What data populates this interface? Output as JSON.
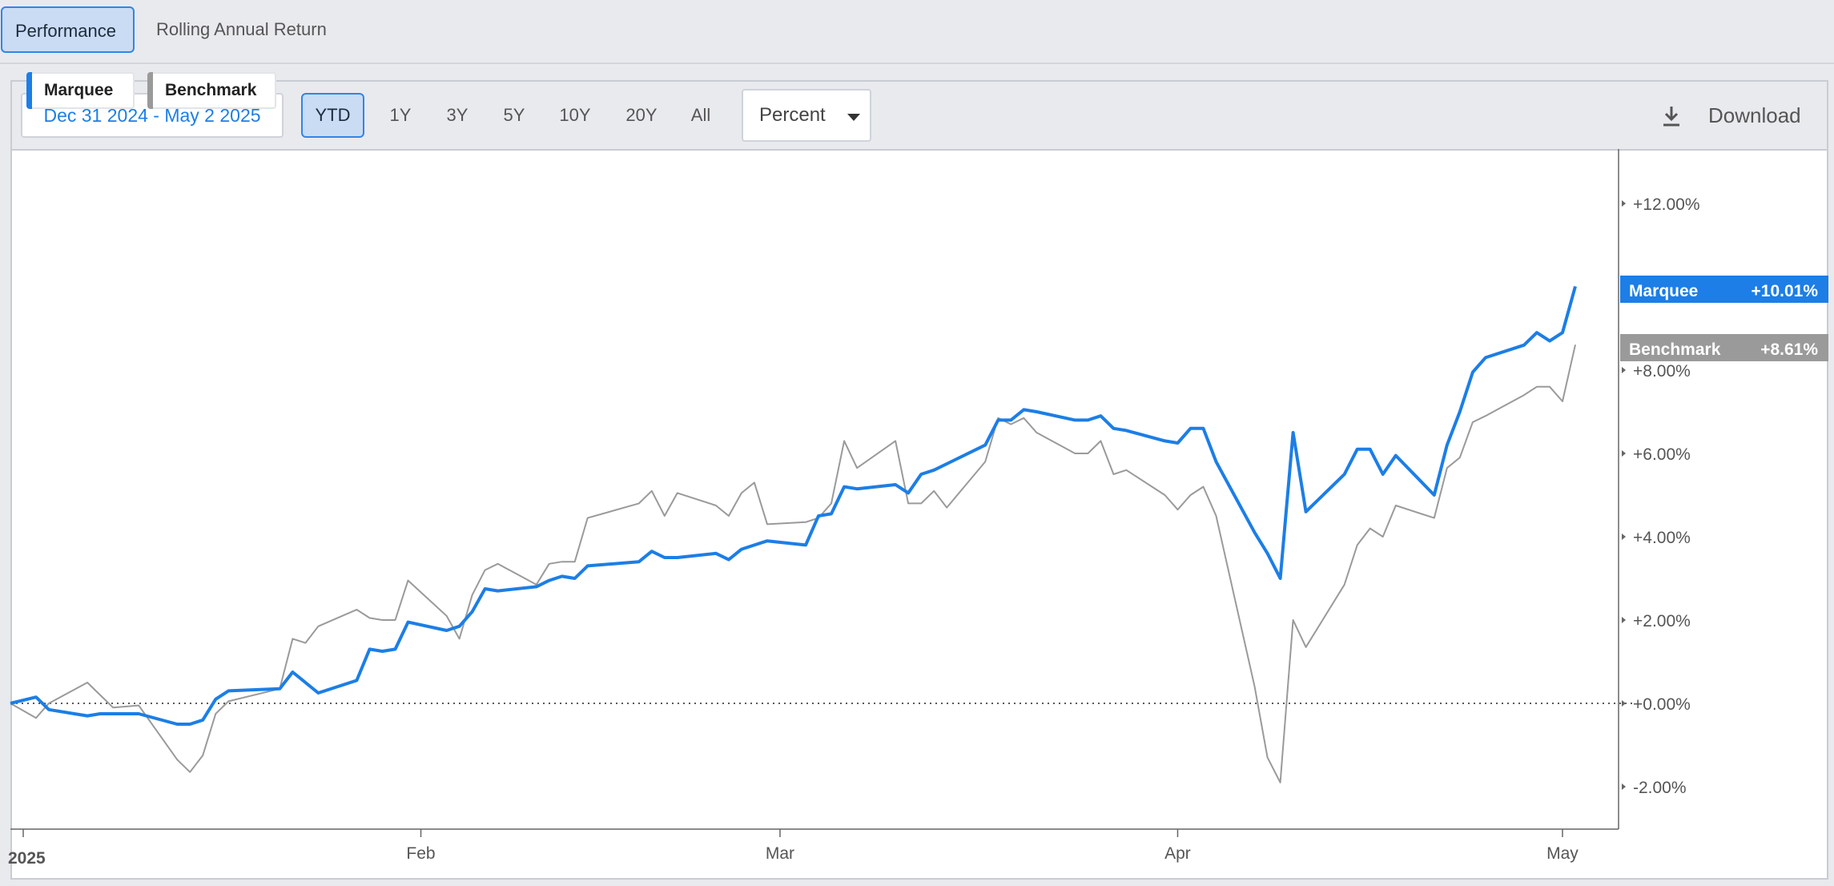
{
  "tabs": [
    {
      "label": "Performance",
      "active": true
    },
    {
      "label": "Rolling Annual Return",
      "active": false
    }
  ],
  "toolbar": {
    "date_range": "Dec 31 2024 - May 2 2025",
    "periods": [
      {
        "label": "YTD",
        "active": true
      },
      {
        "label": "1Y",
        "active": false
      },
      {
        "label": "3Y",
        "active": false
      },
      {
        "label": "5Y",
        "active": false
      },
      {
        "label": "10Y",
        "active": false
      },
      {
        "label": "20Y",
        "active": false
      },
      {
        "label": "All",
        "active": false
      }
    ],
    "unit_select": "Percent",
    "download_label": "Download"
  },
  "legend": [
    {
      "label": "Marquee",
      "color": "#1c7ee6"
    },
    {
      "label": "Benchmark",
      "color": "#9a9a9a"
    }
  ],
  "end_labels": [
    {
      "name": "Marquee",
      "value": "+10.01%",
      "color": "#1c7ee6"
    },
    {
      "name": "Benchmark",
      "value": "+8.61%",
      "color": "#9a9a9a"
    }
  ],
  "chart_data": {
    "type": "line",
    "x_ticks": [
      {
        "label": "2025",
        "date": "2025-01-01",
        "bold": true
      },
      {
        "label": "Feb",
        "date": "2025-02-01"
      },
      {
        "label": "Mar",
        "date": "2025-03-01"
      },
      {
        "label": "Apr",
        "date": "2025-04-01"
      },
      {
        "label": "May",
        "date": "2025-05-01"
      }
    ],
    "y_ticks": [
      "+12.00%",
      "+8.00%",
      "+6.00%",
      "+4.00%",
      "+2.00%",
      "+0.00%",
      "-2.00%"
    ],
    "y_tick_values": [
      12,
      8,
      6,
      4,
      2,
      0,
      -2
    ],
    "ylim": [
      -3.0,
      13.4
    ],
    "xlim": [
      "2024-12-31",
      "2025-05-02"
    ],
    "zero_line": true,
    "series": [
      {
        "name": "Marquee",
        "color": "#1c7ee6",
        "points": [
          [
            "2024-12-31",
            0.0
          ],
          [
            "2025-01-02",
            0.15
          ],
          [
            "2025-01-03",
            -0.15
          ],
          [
            "2025-01-06",
            -0.3
          ],
          [
            "2025-01-07",
            -0.25
          ],
          [
            "2025-01-08",
            -0.25
          ],
          [
            "2025-01-10",
            -0.25
          ],
          [
            "2025-01-13",
            -0.5
          ],
          [
            "2025-01-14",
            -0.5
          ],
          [
            "2025-01-15",
            -0.4
          ],
          [
            "2025-01-16",
            0.1
          ],
          [
            "2025-01-17",
            0.3
          ],
          [
            "2025-01-21",
            0.35
          ],
          [
            "2025-01-22",
            0.75
          ],
          [
            "2025-01-23",
            0.5
          ],
          [
            "2025-01-24",
            0.25
          ],
          [
            "2025-01-27",
            0.55
          ],
          [
            "2025-01-28",
            1.3
          ],
          [
            "2025-01-29",
            1.25
          ],
          [
            "2025-01-30",
            1.3
          ],
          [
            "2025-01-31",
            1.95
          ],
          [
            "2025-02-03",
            1.75
          ],
          [
            "2025-02-04",
            1.85
          ],
          [
            "2025-02-05",
            2.2
          ],
          [
            "2025-02-06",
            2.75
          ],
          [
            "2025-02-07",
            2.7
          ],
          [
            "2025-02-10",
            2.8
          ],
          [
            "2025-02-11",
            2.95
          ],
          [
            "2025-02-12",
            3.05
          ],
          [
            "2025-02-13",
            3.0
          ],
          [
            "2025-02-14",
            3.3
          ],
          [
            "2025-02-18",
            3.4
          ],
          [
            "2025-02-19",
            3.65
          ],
          [
            "2025-02-20",
            3.5
          ],
          [
            "2025-02-21",
            3.5
          ],
          [
            "2025-02-24",
            3.6
          ],
          [
            "2025-02-25",
            3.45
          ],
          [
            "2025-02-26",
            3.7
          ],
          [
            "2025-02-27",
            3.8
          ],
          [
            "2025-02-28",
            3.9
          ],
          [
            "2025-03-03",
            3.8
          ],
          [
            "2025-03-04",
            4.5
          ],
          [
            "2025-03-05",
            4.55
          ],
          [
            "2025-03-06",
            5.2
          ],
          [
            "2025-03-07",
            5.15
          ],
          [
            "2025-03-10",
            5.25
          ],
          [
            "2025-03-11",
            5.05
          ],
          [
            "2025-03-12",
            5.5
          ],
          [
            "2025-03-13",
            5.6
          ],
          [
            "2025-03-14",
            5.75
          ],
          [
            "2025-03-17",
            6.2
          ],
          [
            "2025-03-18",
            6.8
          ],
          [
            "2025-03-19",
            6.8
          ],
          [
            "2025-03-20",
            7.05
          ],
          [
            "2025-03-21",
            7.0
          ],
          [
            "2025-03-24",
            6.8
          ],
          [
            "2025-03-25",
            6.8
          ],
          [
            "2025-03-26",
            6.9
          ],
          [
            "2025-03-27",
            6.6
          ],
          [
            "2025-03-28",
            6.55
          ],
          [
            "2025-03-31",
            6.3
          ],
          [
            "2025-04-01",
            6.25
          ],
          [
            "2025-04-02",
            6.6
          ],
          [
            "2025-04-03",
            6.6
          ],
          [
            "2025-04-04",
            5.8
          ],
          [
            "2025-04-07",
            4.1
          ],
          [
            "2025-04-08",
            3.6
          ],
          [
            "2025-04-09",
            3.0
          ],
          [
            "2025-04-10",
            6.5
          ],
          [
            "2025-04-11",
            4.6
          ],
          [
            "2025-04-14",
            5.5
          ],
          [
            "2025-04-15",
            6.1
          ],
          [
            "2025-04-16",
            6.1
          ],
          [
            "2025-04-17",
            5.5
          ],
          [
            "2025-04-18",
            5.95
          ],
          [
            "2025-04-21",
            5.0
          ],
          [
            "2025-04-22",
            6.2
          ],
          [
            "2025-04-23",
            7.0
          ],
          [
            "2025-04-24",
            7.95
          ],
          [
            "2025-04-25",
            8.3
          ],
          [
            "2025-04-28",
            8.6
          ],
          [
            "2025-04-29",
            8.9
          ],
          [
            "2025-04-30",
            8.7
          ],
          [
            "2025-05-01",
            8.9
          ],
          [
            "2025-05-02",
            10.01
          ]
        ]
      },
      {
        "name": "Benchmark",
        "color": "#9a9a9a",
        "points": [
          [
            "2024-12-31",
            0.0
          ],
          [
            "2025-01-02",
            -0.35
          ],
          [
            "2025-01-03",
            0.0
          ],
          [
            "2025-01-06",
            0.5
          ],
          [
            "2025-01-07",
            0.2
          ],
          [
            "2025-01-08",
            -0.1
          ],
          [
            "2025-01-10",
            -0.05
          ],
          [
            "2025-01-13",
            -1.35
          ],
          [
            "2025-01-14",
            -1.65
          ],
          [
            "2025-01-15",
            -1.25
          ],
          [
            "2025-01-16",
            -0.25
          ],
          [
            "2025-01-17",
            0.05
          ],
          [
            "2025-01-21",
            0.35
          ],
          [
            "2025-01-22",
            1.55
          ],
          [
            "2025-01-23",
            1.45
          ],
          [
            "2025-01-24",
            1.85
          ],
          [
            "2025-01-27",
            2.25
          ],
          [
            "2025-01-28",
            2.05
          ],
          [
            "2025-01-29",
            2.0
          ],
          [
            "2025-01-30",
            2.0
          ],
          [
            "2025-01-31",
            2.95
          ],
          [
            "2025-02-03",
            2.1
          ],
          [
            "2025-02-04",
            1.55
          ],
          [
            "2025-02-05",
            2.6
          ],
          [
            "2025-02-06",
            3.2
          ],
          [
            "2025-02-07",
            3.35
          ],
          [
            "2025-02-10",
            2.85
          ],
          [
            "2025-02-11",
            3.35
          ],
          [
            "2025-02-12",
            3.4
          ],
          [
            "2025-02-13",
            3.4
          ],
          [
            "2025-02-14",
            4.45
          ],
          [
            "2025-02-18",
            4.8
          ],
          [
            "2025-02-19",
            5.1
          ],
          [
            "2025-02-20",
            4.5
          ],
          [
            "2025-02-21",
            5.05
          ],
          [
            "2025-02-24",
            4.75
          ],
          [
            "2025-02-25",
            4.5
          ],
          [
            "2025-02-26",
            5.05
          ],
          [
            "2025-02-27",
            5.3
          ],
          [
            "2025-02-28",
            4.3
          ],
          [
            "2025-03-03",
            4.35
          ],
          [
            "2025-03-04",
            4.45
          ],
          [
            "2025-03-05",
            4.8
          ],
          [
            "2025-03-06",
            6.3
          ],
          [
            "2025-03-07",
            5.65
          ],
          [
            "2025-03-10",
            6.3
          ],
          [
            "2025-03-11",
            4.8
          ],
          [
            "2025-03-12",
            4.8
          ],
          [
            "2025-03-13",
            5.1
          ],
          [
            "2025-03-14",
            4.7
          ],
          [
            "2025-03-17",
            5.8
          ],
          [
            "2025-03-18",
            6.85
          ],
          [
            "2025-03-19",
            6.7
          ],
          [
            "2025-03-20",
            6.85
          ],
          [
            "2025-03-21",
            6.5
          ],
          [
            "2025-03-24",
            6.0
          ],
          [
            "2025-03-25",
            6.0
          ],
          [
            "2025-03-26",
            6.3
          ],
          [
            "2025-03-27",
            5.5
          ],
          [
            "2025-03-28",
            5.6
          ],
          [
            "2025-03-31",
            5.0
          ],
          [
            "2025-04-01",
            4.65
          ],
          [
            "2025-04-02",
            5.0
          ],
          [
            "2025-04-03",
            5.2
          ],
          [
            "2025-04-04",
            4.5
          ],
          [
            "2025-04-07",
            0.4
          ],
          [
            "2025-04-08",
            -1.3
          ],
          [
            "2025-04-09",
            -1.9
          ],
          [
            "2025-04-10",
            2.0
          ],
          [
            "2025-04-11",
            1.35
          ],
          [
            "2025-04-14",
            2.85
          ],
          [
            "2025-04-15",
            3.8
          ],
          [
            "2025-04-16",
            4.2
          ],
          [
            "2025-04-17",
            4.0
          ],
          [
            "2025-04-18",
            4.75
          ],
          [
            "2025-04-21",
            4.45
          ],
          [
            "2025-04-22",
            5.65
          ],
          [
            "2025-04-23",
            5.9
          ],
          [
            "2025-04-24",
            6.75
          ],
          [
            "2025-04-25",
            6.9
          ],
          [
            "2025-04-28",
            7.4
          ],
          [
            "2025-04-29",
            7.6
          ],
          [
            "2025-04-30",
            7.6
          ],
          [
            "2025-05-01",
            7.25
          ],
          [
            "2025-05-02",
            8.61
          ]
        ]
      }
    ]
  }
}
